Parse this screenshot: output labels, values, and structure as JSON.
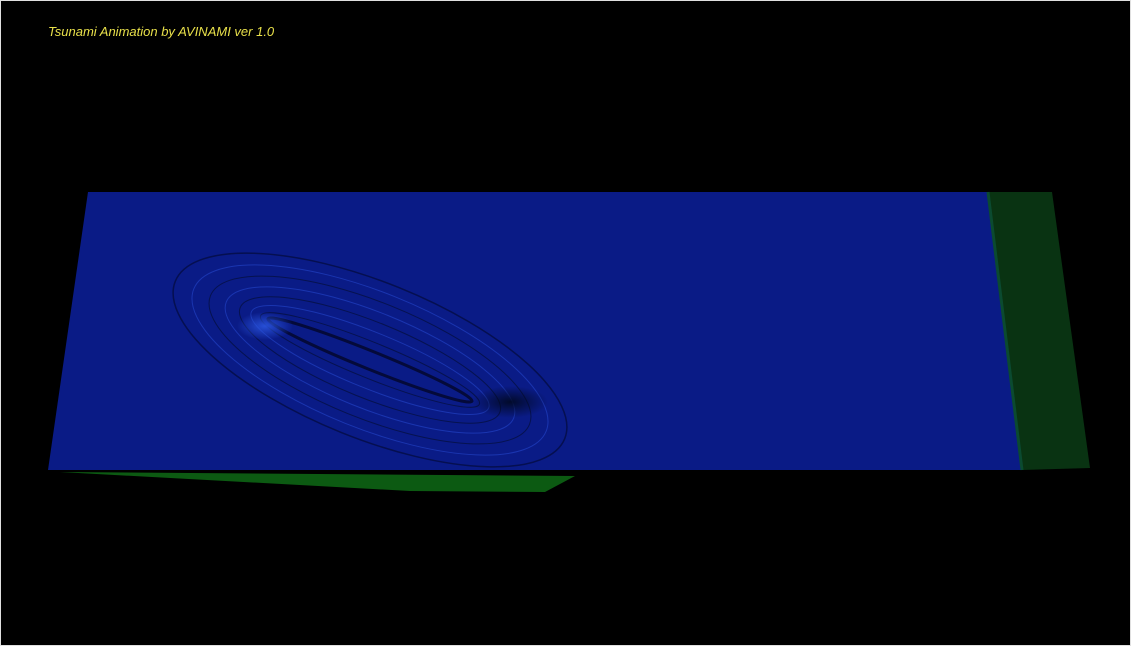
{
  "header": {
    "title": "Tsunami Animation by AVINAMI ver 1.0"
  }
}
